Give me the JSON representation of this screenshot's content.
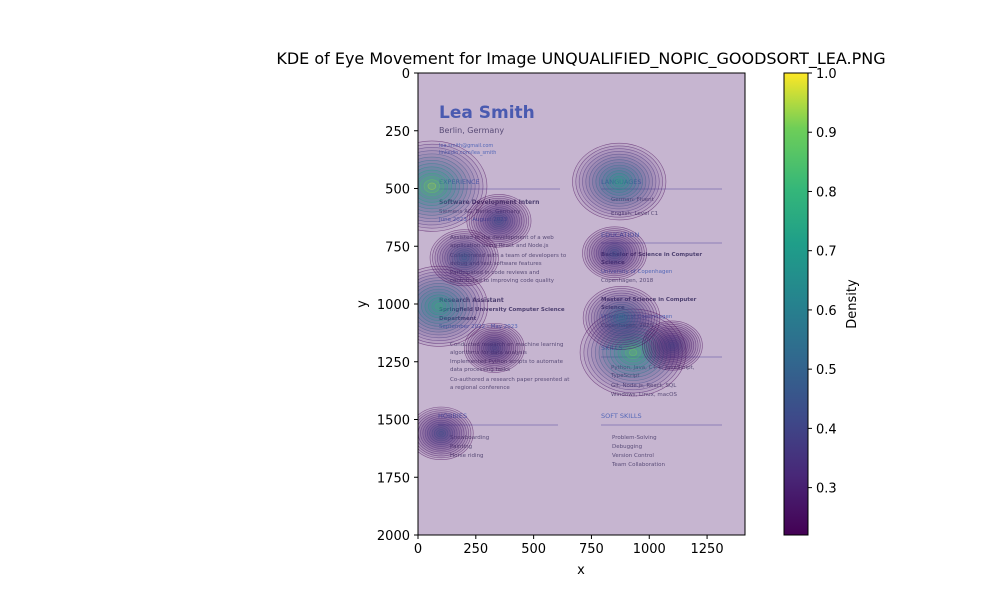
{
  "chart_data": {
    "type": "heatmap",
    "title": "KDE of Eye Movement for Image UNQUALIFIED_NOPIC_GOODSORT_LEA.PNG",
    "xlabel": "x",
    "ylabel": "y",
    "xlim": [
      0,
      1414
    ],
    "ylim": [
      2000,
      0
    ],
    "y_inverted": true,
    "xticks": [
      0,
      250,
      500,
      750,
      1000,
      1250
    ],
    "yticks": [
      0,
      250,
      500,
      750,
      1000,
      1250,
      1500,
      1750,
      2000
    ],
    "grid": false,
    "colormap": "viridis",
    "colorbar": {
      "label": "Density",
      "min": 0.22,
      "max": 1.0,
      "ticks": [
        0.3,
        0.4,
        0.5,
        0.6,
        0.7,
        0.8,
        0.9,
        "1.0"
      ]
    },
    "hotspots": [
      {
        "x": 60,
        "y": 490,
        "density": 1.0
      },
      {
        "x": 90,
        "y": 1010,
        "density": 0.85
      },
      {
        "x": 870,
        "y": 470,
        "density": 0.8
      },
      {
        "x": 930,
        "y": 1210,
        "density": 0.95
      },
      {
        "x": 880,
        "y": 1060,
        "density": 0.6
      },
      {
        "x": 200,
        "y": 800,
        "density": 0.5
      },
      {
        "x": 350,
        "y": 640,
        "density": 0.45
      },
      {
        "x": 850,
        "y": 780,
        "density": 0.45
      },
      {
        "x": 100,
        "y": 1560,
        "density": 0.45
      },
      {
        "x": 330,
        "y": 1190,
        "density": 0.4
      },
      {
        "x": 1100,
        "y": 1180,
        "density": 0.4
      }
    ]
  },
  "resume": {
    "name": "Lea Smith",
    "location": "Berlin, Germany",
    "email": "lea.smith@gmail.com",
    "website": "linkedin.com/lea_smith",
    "experience": {
      "heading": "EXPERIENCE",
      "job1_title": "Software Development Intern",
      "job1_company": "Siemens AG, Berlin, Germany",
      "job1_dates": "June 2023 - August 2023",
      "job1_b1a": "Assisted in the development of a web",
      "job1_b1b": "application using React and Node.js",
      "job1_b2a": "Collaborated with a team of developers to",
      "job1_b2b": "debug and test software features",
      "job1_b3a": "Participated in code reviews and",
      "job1_b3b": "contributed to improving code quality",
      "job2_title": "Research Assistant",
      "job2_company": "Springfield University Computer Science",
      "job2_company2": "Department",
      "job2_dates": "September 2022 - May 2023",
      "job2_b1a": "Conducted research on machine learning",
      "job2_b1b": "algorithms for data analysis",
      "job2_b2a": "Implemented Python scripts to automate",
      "job2_b2b": "data processing tasks",
      "job2_b3a": "Co-authored a research paper presented at",
      "job2_b3b": "a regional conference"
    },
    "hobbies": {
      "heading": "HOBBIES",
      "items": [
        "Snowboarding",
        "Painting",
        "Horse riding"
      ]
    },
    "languages": {
      "heading": "LANGUAGES",
      "items": [
        "German: Fluent",
        "English: Level C1"
      ]
    },
    "education": {
      "heading": "EDUCATION",
      "deg1a": "Bachelor of Science in Computer",
      "deg1b": "Science",
      "school1": "University of Copenhagen",
      "place1": "Copenhagen, 2018",
      "deg2a": "Master of Science in Computer",
      "deg2b": "Science",
      "school2": "University of Copenhagen",
      "place2": "Copenhagen, 2023"
    },
    "skills": {
      "heading": "SKILLS",
      "line1a": "Python, Java, C++, JavaScript,",
      "line1b": "TypeScript",
      "line2": "Git, Node.js, React, SQL",
      "line3": "Windows, Linux, macOS"
    },
    "soft_skills": {
      "heading": "SOFT SKILLS",
      "items": [
        "Problem-Solving",
        "Debugging",
        "Version Control",
        "Team Collaboration"
      ]
    }
  }
}
